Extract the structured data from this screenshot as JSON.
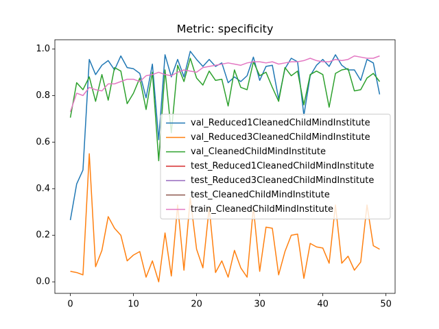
{
  "chart_data": {
    "type": "line",
    "title": "Metric: specificity",
    "x": [
      0,
      1,
      2,
      3,
      4,
      5,
      6,
      7,
      8,
      9,
      10,
      11,
      12,
      13,
      14,
      15,
      16,
      17,
      18,
      19,
      20,
      21,
      22,
      23,
      24,
      25,
      26,
      27,
      28,
      29,
      30,
      31,
      32,
      33,
      34,
      35,
      36,
      37,
      38,
      39,
      40,
      41,
      42,
      43,
      44,
      45,
      46,
      47,
      48,
      49
    ],
    "xlim": [
      -2.45,
      51.45
    ],
    "xticks": [
      0,
      10,
      20,
      30,
      40,
      50
    ],
    "ylim": [
      -0.0495,
      1.0395
    ],
    "yticks": [
      {
        "value": 0,
        "label": "0.0"
      },
      {
        "value": 0.2,
        "label": "0.2"
      },
      {
        "value": 0.4,
        "label": "0.4"
      },
      {
        "value": 0.6,
        "label": "0.6"
      },
      {
        "value": 0.8,
        "label": "0.8"
      },
      {
        "value": 1,
        "label": "1.0"
      }
    ],
    "legend": "center right",
    "series": [
      {
        "name": "val_Reduced1CleanedChildMindInstitute",
        "color": "#1f77b4",
        "values": [
          0.265,
          0.42,
          0.48,
          0.955,
          0.89,
          0.93,
          0.95,
          0.91,
          0.97,
          0.92,
          0.915,
          0.895,
          0.79,
          0.935,
          0.61,
          0.975,
          0.88,
          0.955,
          0.88,
          0.99,
          0.955,
          0.925,
          0.955,
          0.925,
          0.94,
          0.855,
          0.88,
          0.86,
          0.885,
          0.965,
          0.865,
          0.925,
          0.93,
          0.785,
          0.915,
          0.96,
          0.945,
          0.715,
          0.885,
          0.93,
          0.955,
          0.925,
          0.975,
          0.93,
          0.91,
          0.91,
          0.865,
          0.955,
          0.94,
          0.805
        ]
      },
      {
        "name": "val_Reduced3CleanedChildMindInstitute",
        "color": "#ff7f0e",
        "values": [
          0.045,
          0.04,
          0.03,
          0.55,
          0.065,
          0.135,
          0.28,
          0.23,
          0.2,
          0.09,
          0.115,
          0.13,
          0.02,
          0.09,
          0.0,
          0.21,
          0.025,
          0.33,
          0.05,
          0.36,
          0.14,
          0.06,
          0.32,
          0.04,
          0.09,
          0.02,
          0.135,
          0.06,
          0.02,
          0.32,
          0.045,
          0.235,
          0.23,
          0.03,
          0.13,
          0.2,
          0.205,
          0.015,
          0.165,
          0.15,
          0.145,
          0.08,
          0.33,
          0.08,
          0.11,
          0.05,
          0.085,
          0.33,
          0.155,
          0.14
        ]
      },
      {
        "name": "val_CleanedChildMindInstitute",
        "color": "#2ca02c",
        "values": [
          0.705,
          0.855,
          0.825,
          0.88,
          0.775,
          0.89,
          0.78,
          0.92,
          0.905,
          0.765,
          0.81,
          0.875,
          0.74,
          0.9,
          0.52,
          0.91,
          0.64,
          0.93,
          0.86,
          0.96,
          0.875,
          0.845,
          0.905,
          0.865,
          0.87,
          0.755,
          0.91,
          0.835,
          0.825,
          0.945,
          0.885,
          0.9,
          0.835,
          0.775,
          0.92,
          0.885,
          0.905,
          0.76,
          0.89,
          0.905,
          0.89,
          0.75,
          0.895,
          0.91,
          0.915,
          0.82,
          0.825,
          0.875,
          0.895,
          0.86
        ]
      },
      {
        "name": "test_Reduced1CleanedChildMindInstitute",
        "color": "#d62728",
        "values": [
          null,
          null,
          null,
          null,
          null,
          null,
          null,
          null,
          null,
          null,
          null,
          null,
          null,
          null,
          null,
          null,
          null,
          null,
          null,
          null,
          null,
          null,
          null,
          null,
          null,
          null,
          null,
          null,
          null,
          null,
          null,
          null,
          null,
          null,
          null,
          null,
          null,
          null,
          null,
          null,
          null,
          null,
          null,
          null,
          null,
          null,
          null,
          null,
          null,
          null
        ]
      },
      {
        "name": "test_Reduced3CleanedChildMindInstitute",
        "color": "#9467bd",
        "values": [
          null,
          null,
          null,
          null,
          null,
          null,
          null,
          null,
          null,
          null,
          null,
          null,
          null,
          null,
          null,
          null,
          null,
          null,
          null,
          null,
          null,
          null,
          null,
          null,
          null,
          null,
          null,
          null,
          null,
          null,
          null,
          null,
          null,
          null,
          null,
          null,
          null,
          null,
          null,
          null,
          null,
          null,
          null,
          null,
          null,
          null,
          null,
          null,
          null,
          null
        ]
      },
      {
        "name": "test_CleanedChildMindInstitute",
        "color": "#8c564b",
        "values": [
          null,
          null,
          null,
          null,
          null,
          null,
          null,
          null,
          null,
          null,
          null,
          null,
          null,
          null,
          null,
          null,
          null,
          null,
          null,
          null,
          null,
          null,
          null,
          null,
          null,
          null,
          null,
          null,
          null,
          null,
          null,
          null,
          null,
          null,
          null,
          null,
          null,
          null,
          null,
          null,
          null,
          null,
          null,
          null,
          null,
          null,
          null,
          null,
          null,
          null
        ]
      },
      {
        "name": "train_CleanedChildMindInstitute",
        "color": "#e377c2",
        "values": [
          0.73,
          0.81,
          0.8,
          0.835,
          0.825,
          0.82,
          0.85,
          0.85,
          0.86,
          0.87,
          0.87,
          0.86,
          0.885,
          0.89,
          0.9,
          0.89,
          0.885,
          0.9,
          0.91,
          0.905,
          0.9,
          0.92,
          0.925,
          0.93,
          0.935,
          0.94,
          0.935,
          0.93,
          0.94,
          0.945,
          0.945,
          0.94,
          0.945,
          0.935,
          0.94,
          0.945,
          0.945,
          0.95,
          0.96,
          0.95,
          0.945,
          0.945,
          0.955,
          0.95,
          0.955,
          0.97,
          0.965,
          0.96,
          0.96,
          0.97
        ]
      }
    ]
  }
}
